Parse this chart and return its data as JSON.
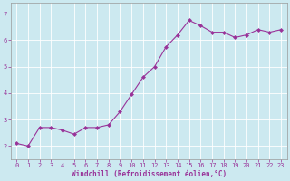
{
  "x": [
    0,
    1,
    2,
    3,
    4,
    5,
    6,
    7,
    8,
    9,
    10,
    11,
    12,
    13,
    14,
    15,
    16,
    17,
    18,
    19,
    20,
    21,
    22,
    23
  ],
  "y": [
    2.1,
    2.0,
    2.7,
    2.7,
    2.6,
    2.45,
    2.7,
    2.7,
    2.8,
    3.3,
    3.95,
    4.6,
    5.0,
    5.75,
    6.2,
    6.75,
    6.55,
    6.3,
    6.3,
    6.1,
    6.2,
    6.4,
    6.3,
    6.4
  ],
  "line_color": "#993399",
  "marker": "D",
  "marker_size": 2,
  "bg_color": "#cce9f0",
  "grid_color": "#b0d8e0",
  "xlabel": "Windchill (Refroidissement éolien,°C)",
  "xlabel_color": "#993399",
  "tick_color": "#993399",
  "ylim": [
    1.5,
    7.4
  ],
  "xlim": [
    -0.5,
    23.5
  ],
  "yticks": [
    2,
    3,
    4,
    5,
    6,
    7
  ],
  "xticks": [
    0,
    1,
    2,
    3,
    4,
    5,
    6,
    7,
    8,
    9,
    10,
    11,
    12,
    13,
    14,
    15,
    16,
    17,
    18,
    19,
    20,
    21,
    22,
    23
  ],
  "tick_fontsize": 5,
  "xlabel_fontsize": 5.5,
  "line_width": 0.8
}
